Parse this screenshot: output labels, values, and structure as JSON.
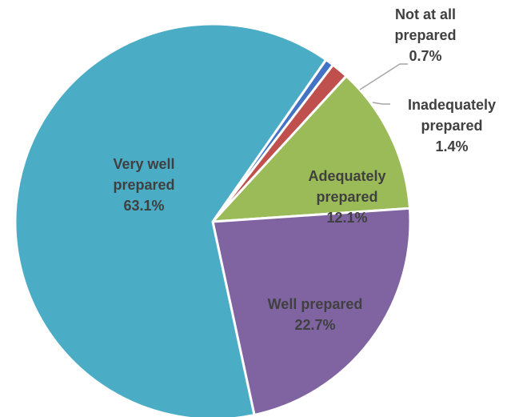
{
  "chart_data": {
    "type": "pie",
    "start_angle_deg": 35,
    "direction": "clockwise",
    "slices": [
      {
        "label_lines": [
          "Not at all",
          "prepared",
          "0.7%"
        ],
        "value": 0.7,
        "color": "#4472C4"
      },
      {
        "label_lines": [
          "Inadequately",
          "prepared",
          "1.4%"
        ],
        "value": 1.4,
        "color": "#C0504D"
      },
      {
        "label_lines": [
          "Adequately",
          "prepared",
          "12.1%"
        ],
        "value": 12.1,
        "color": "#9BBB59"
      },
      {
        "label_lines": [
          "Well prepared",
          "22.7%"
        ],
        "value": 22.7,
        "color": "#8064A2"
      },
      {
        "label_lines": [
          "Very well",
          "prepared",
          "63.1%"
        ],
        "value": 63.1,
        "color": "#4BACC6"
      }
    ]
  }
}
